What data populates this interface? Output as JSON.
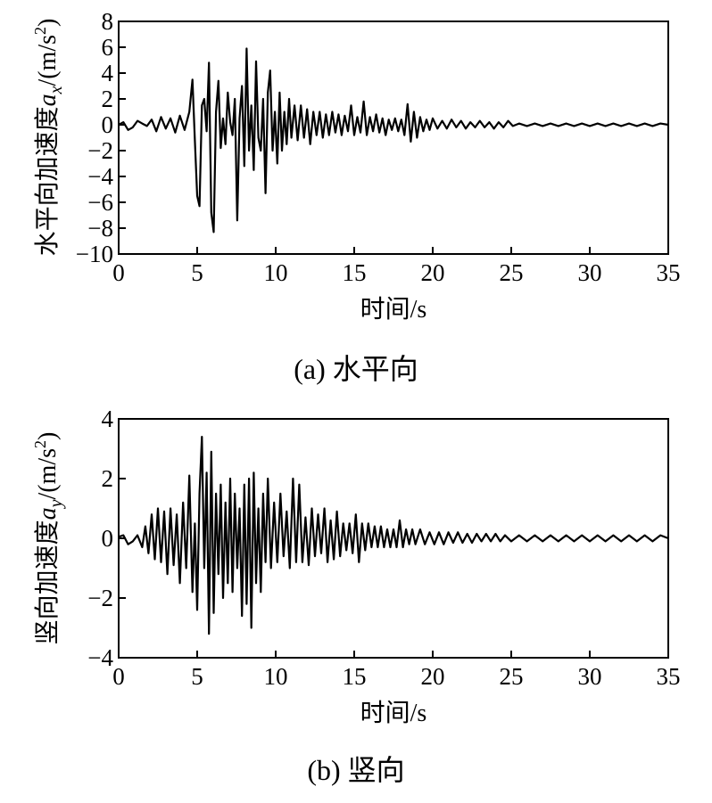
{
  "chart_data": [
    {
      "type": "line",
      "caption": "(a)  水平向",
      "xlabel": "时间/s",
      "ylabel": {
        "prefix": "水平向加速度",
        "var": "a",
        "sub": "x",
        "unit_pre": "/(m/s",
        "unit_exp": "2",
        "unit_post": ")"
      },
      "xlim": [
        0,
        35
      ],
      "ylim": [
        -10,
        8
      ],
      "xticks": [
        0,
        5,
        10,
        15,
        20,
        25,
        30,
        35
      ],
      "yticks": [
        8,
        6,
        4,
        2,
        0,
        -2,
        -4,
        -6,
        -8,
        -10
      ],
      "ytick_labels": [
        "8",
        "6",
        "4",
        "2",
        "0",
        "−2",
        "−4",
        "−6",
        "−8",
        "−10"
      ],
      "series": [
        {
          "color": "#000000",
          "x": [
            0,
            0.3,
            0.6,
            0.9,
            1.2,
            1.5,
            1.8,
            2.1,
            2.4,
            2.7,
            3.0,
            3.3,
            3.6,
            3.9,
            4.2,
            4.5,
            4.7,
            4.85,
            5.0,
            5.15,
            5.3,
            5.45,
            5.6,
            5.75,
            5.9,
            6.05,
            6.2,
            6.35,
            6.5,
            6.65,
            6.8,
            6.95,
            7.1,
            7.25,
            7.4,
            7.55,
            7.7,
            7.85,
            8.0,
            8.15,
            8.3,
            8.45,
            8.6,
            8.75,
            8.9,
            9.05,
            9.2,
            9.35,
            9.5,
            9.65,
            9.8,
            9.95,
            10.1,
            10.25,
            10.4,
            10.55,
            10.7,
            10.85,
            11.0,
            11.2,
            11.4,
            11.6,
            11.8,
            12.0,
            12.2,
            12.4,
            12.6,
            12.8,
            13.0,
            13.2,
            13.4,
            13.6,
            13.8,
            14.0,
            14.2,
            14.4,
            14.6,
            14.8,
            15.0,
            15.2,
            15.4,
            15.6,
            15.8,
            16.0,
            16.2,
            16.4,
            16.6,
            16.8,
            17.0,
            17.2,
            17.4,
            17.6,
            17.8,
            18.0,
            18.2,
            18.4,
            18.6,
            18.8,
            19.0,
            19.2,
            19.4,
            19.6,
            19.8,
            20.0,
            20.3,
            20.6,
            20.9,
            21.2,
            21.5,
            21.8,
            22.1,
            22.4,
            22.7,
            23.0,
            23.3,
            23.6,
            23.9,
            24.2,
            24.5,
            24.8,
            25.1,
            25.5,
            26.0,
            26.5,
            27.0,
            27.5,
            28.0,
            28.5,
            29.0,
            29.5,
            30.0,
            30.5,
            31.0,
            31.5,
            32.0,
            32.5,
            33.0,
            33.5,
            34.0,
            34.5,
            35.0
          ],
          "y": [
            0,
            0.2,
            -0.4,
            -0.2,
            0.3,
            0.1,
            -0.1,
            0.4,
            -0.5,
            0.6,
            -0.3,
            0.5,
            -0.6,
            0.7,
            -0.4,
            1.0,
            3.5,
            -1.2,
            -5.5,
            -6.3,
            1.5,
            2.0,
            -0.5,
            4.8,
            -6.8,
            -8.3,
            1.0,
            3.4,
            -1.8,
            0.5,
            -1.5,
            2.5,
            0.2,
            -0.8,
            2.0,
            -7.4,
            0.5,
            3.0,
            -3.2,
            5.9,
            -2.0,
            1.5,
            -3.5,
            4.9,
            -1.0,
            -2.0,
            2.0,
            -5.3,
            2.5,
            4.2,
            -2.0,
            1.0,
            -3.0,
            2.5,
            -2.0,
            1.0,
            -1.5,
            2.0,
            -1.0,
            1.5,
            -1.2,
            1.5,
            -1.0,
            1.2,
            -1.5,
            1.0,
            -0.8,
            1.0,
            -1.0,
            0.8,
            -0.8,
            1.0,
            -0.6,
            0.8,
            -0.8,
            0.7,
            -0.5,
            1.5,
            -0.8,
            0.6,
            -0.6,
            1.8,
            -0.8,
            0.6,
            -0.5,
            0.8,
            -0.6,
            0.5,
            -0.8,
            0.4,
            -0.4,
            0.5,
            -0.5,
            0.4,
            -0.8,
            1.6,
            -1.3,
            1.0,
            -1.0,
            0.6,
            -0.5,
            0.4,
            -0.4,
            0.5,
            -0.3,
            0.3,
            -0.3,
            0.4,
            -0.2,
            0.3,
            -0.3,
            0.2,
            -0.2,
            0.3,
            -0.2,
            0.2,
            -0.3,
            0.2,
            -0.2,
            0.3,
            -0.1,
            0.1,
            -0.1,
            0.1,
            -0.1,
            0.1,
            -0.1,
            0.1,
            -0.1,
            0.1,
            -0.1,
            0.1,
            -0.1,
            0.1,
            -0.1,
            0.1,
            -0.1,
            0.1,
            -0.1,
            0.1,
            0.0
          ]
        }
      ]
    },
    {
      "type": "line",
      "caption": "(b)  竖向",
      "xlabel": "时间/s",
      "ylabel": {
        "prefix": "竖向加速度",
        "var": "a",
        "sub": "y",
        "unit_pre": "/(m/s",
        "unit_exp": "2",
        "unit_post": ")"
      },
      "xlim": [
        0,
        35
      ],
      "ylim": [
        -4,
        4
      ],
      "xticks": [
        0,
        5,
        10,
        15,
        20,
        25,
        30,
        35
      ],
      "yticks": [
        4,
        2,
        0,
        -2,
        -4
      ],
      "ytick_labels": [
        "4",
        "2",
        "0",
        "−2",
        "−4"
      ],
      "series": [
        {
          "color": "#000000",
          "x": [
            0,
            0.3,
            0.6,
            0.9,
            1.2,
            1.5,
            1.7,
            1.9,
            2.1,
            2.3,
            2.5,
            2.7,
            2.9,
            3.1,
            3.3,
            3.5,
            3.7,
            3.9,
            4.1,
            4.3,
            4.5,
            4.7,
            4.85,
            5.0,
            5.15,
            5.3,
            5.45,
            5.6,
            5.75,
            5.9,
            6.05,
            6.2,
            6.35,
            6.5,
            6.65,
            6.8,
            6.95,
            7.1,
            7.25,
            7.4,
            7.55,
            7.7,
            7.85,
            8.0,
            8.15,
            8.3,
            8.45,
            8.6,
            8.75,
            8.9,
            9.05,
            9.2,
            9.35,
            9.5,
            9.7,
            9.9,
            10.1,
            10.3,
            10.5,
            10.7,
            10.9,
            11.1,
            11.3,
            11.5,
            11.7,
            11.9,
            12.1,
            12.3,
            12.5,
            12.7,
            12.9,
            13.1,
            13.3,
            13.5,
            13.7,
            13.9,
            14.1,
            14.3,
            14.5,
            14.7,
            14.9,
            15.1,
            15.3,
            15.5,
            15.7,
            15.9,
            16.1,
            16.3,
            16.5,
            16.7,
            16.9,
            17.1,
            17.3,
            17.5,
            17.7,
            17.9,
            18.1,
            18.3,
            18.5,
            18.7,
            18.9,
            19.2,
            19.5,
            19.8,
            20.1,
            20.4,
            20.7,
            21.0,
            21.3,
            21.6,
            21.9,
            22.2,
            22.5,
            22.8,
            23.1,
            23.4,
            23.7,
            24.0,
            24.3,
            24.6,
            25.0,
            25.5,
            26.0,
            26.5,
            27.0,
            27.5,
            28.0,
            28.5,
            29.0,
            29.5,
            30.0,
            30.5,
            31.0,
            31.5,
            32.0,
            32.5,
            33.0,
            33.5,
            34.0,
            34.5,
            35.0
          ],
          "y": [
            0.05,
            0.1,
            -0.2,
            -0.1,
            0.1,
            -0.3,
            0.4,
            -0.5,
            0.8,
            -0.7,
            1.0,
            -0.8,
            0.9,
            -1.2,
            1.0,
            -0.9,
            0.8,
            -1.5,
            1.2,
            -1.0,
            2.1,
            -1.8,
            0.5,
            -2.4,
            1.5,
            3.4,
            -1.0,
            2.2,
            -3.2,
            2.9,
            -2.5,
            1.5,
            -1.2,
            1.8,
            -2.0,
            1.2,
            -1.5,
            2.0,
            -1.8,
            1.5,
            -1.0,
            1.0,
            -2.6,
            1.8,
            -2.2,
            2.0,
            -3.0,
            2.2,
            -1.5,
            1.0,
            -1.8,
            1.5,
            -0.8,
            2.0,
            -1.0,
            1.2,
            -0.8,
            1.5,
            -0.6,
            0.9,
            -1.0,
            2.0,
            -0.8,
            1.8,
            -0.8,
            0.7,
            -0.9,
            1.0,
            -0.6,
            0.8,
            -0.5,
            1.0,
            -0.8,
            0.6,
            -0.7,
            0.9,
            -0.6,
            0.5,
            -0.4,
            0.5,
            -0.5,
            0.8,
            -0.8,
            0.5,
            -0.4,
            0.5,
            -0.3,
            0.4,
            -0.3,
            0.4,
            -0.3,
            0.3,
            -0.3,
            0.3,
            -0.3,
            0.6,
            -0.3,
            0.3,
            -0.2,
            0.3,
            -0.2,
            0.3,
            -0.2,
            0.2,
            -0.2,
            0.2,
            -0.2,
            0.2,
            -0.15,
            0.2,
            -0.15,
            0.15,
            -0.15,
            0.15,
            -0.1,
            0.15,
            -0.1,
            0.15,
            -0.1,
            0.1,
            -0.1,
            0.1,
            -0.1,
            0.1,
            -0.1,
            0.1,
            -0.1,
            0.1,
            -0.1,
            0.1,
            -0.1,
            0.1,
            -0.1,
            0.1,
            -0.1,
            0.1,
            -0.1,
            0.1,
            -0.1,
            0.1,
            0.0
          ]
        }
      ]
    }
  ]
}
